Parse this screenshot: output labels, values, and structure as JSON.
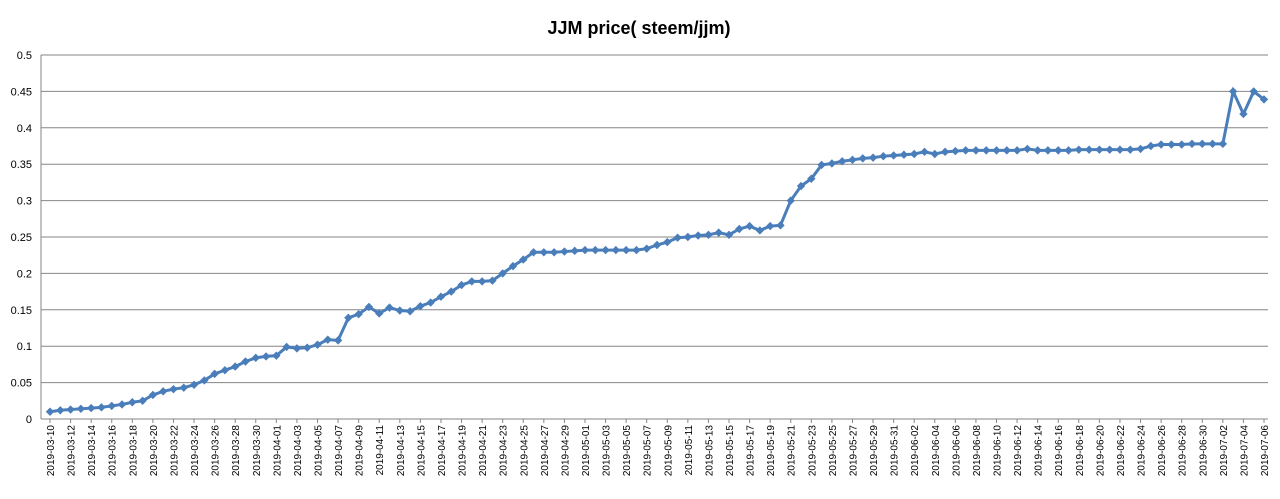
{
  "chart_data": {
    "type": "line",
    "title": "JJM price( steem/jjm)",
    "xlabel": "",
    "ylabel": "",
    "ylim": [
      0,
      0.5
    ],
    "yticks": [
      "0",
      "0.05",
      "0.1",
      "0.15",
      "0.2",
      "0.25",
      "0.3",
      "0.35",
      "0.4",
      "0.45",
      "0.5"
    ],
    "grid": true,
    "legend": "none",
    "color": "#4a7ebb",
    "x": [
      "2019-03-10",
      "2019-03-11",
      "2019-03-12",
      "2019-03-13",
      "2019-03-14",
      "2019-03-15",
      "2019-03-16",
      "2019-03-17",
      "2019-03-18",
      "2019-03-19",
      "2019-03-20",
      "2019-03-21",
      "2019-03-22",
      "2019-03-23",
      "2019-03-24",
      "2019-03-25",
      "2019-03-26",
      "2019-03-27",
      "2019-03-28",
      "2019-03-29",
      "2019-03-30",
      "2019-03-31",
      "2019-04-01",
      "2019-04-02",
      "2019-04-03",
      "2019-04-04",
      "2019-04-05",
      "2019-04-06",
      "2019-04-07",
      "2019-04-08",
      "2019-04-09",
      "2019-04-10",
      "2019-04-11",
      "2019-04-12",
      "2019-04-13",
      "2019-04-14",
      "2019-04-15",
      "2019-04-16",
      "2019-04-17",
      "2019-04-18",
      "2019-04-19",
      "2019-04-20",
      "2019-04-21",
      "2019-04-22",
      "2019-04-23",
      "2019-04-24",
      "2019-04-25",
      "2019-04-26",
      "2019-04-27",
      "2019-04-28",
      "2019-04-29",
      "2019-04-30",
      "2019-05-01",
      "2019-05-02",
      "2019-05-03",
      "2019-05-04",
      "2019-05-05",
      "2019-05-06",
      "2019-05-07",
      "2019-05-08",
      "2019-05-09",
      "2019-05-10",
      "2019-05-11",
      "2019-05-12",
      "2019-05-13",
      "2019-05-14",
      "2019-05-15",
      "2019-05-16",
      "2019-05-17",
      "2019-05-18",
      "2019-05-19",
      "2019-05-20",
      "2019-05-21",
      "2019-05-22",
      "2019-05-23",
      "2019-05-24",
      "2019-05-25",
      "2019-05-26",
      "2019-05-27",
      "2019-05-28",
      "2019-05-29",
      "2019-05-30",
      "2019-05-31",
      "2019-06-01",
      "2019-06-02",
      "2019-06-03",
      "2019-06-04",
      "2019-06-05",
      "2019-06-06",
      "2019-06-07",
      "2019-06-08",
      "2019-06-09",
      "2019-06-10",
      "2019-06-11",
      "2019-06-12",
      "2019-06-13",
      "2019-06-14",
      "2019-06-15",
      "2019-06-16",
      "2019-06-17",
      "2019-06-18",
      "2019-06-19",
      "2019-06-20",
      "2019-06-21",
      "2019-06-22",
      "2019-06-23",
      "2019-06-24",
      "2019-06-25",
      "2019-06-26",
      "2019-06-27",
      "2019-06-28",
      "2019-06-29",
      "2019-06-30",
      "2019-07-01",
      "2019-07-02",
      "2019-07-03",
      "2019-07-04",
      "2019-07-05",
      "2019-07-06"
    ],
    "xtick_labels": [
      "2019-03-10",
      "2019-03-12",
      "2019-03-14",
      "2019-03-16",
      "2019-03-18",
      "2019-03-20",
      "2019-03-22",
      "2019-03-24",
      "2019-03-26",
      "2019-03-28",
      "2019-03-30",
      "2019-04-01",
      "2019-04-03",
      "2019-04-05",
      "2019-04-07",
      "2019-04-09",
      "2019-04-11",
      "2019-04-13",
      "2019-04-15",
      "2019-04-17",
      "2019-04-19",
      "2019-04-21",
      "2019-04-23",
      "2019-04-25",
      "2019-04-27",
      "2019-04-29",
      "2019-05-01",
      "2019-05-03",
      "2019-05-05",
      "2019-05-07",
      "2019-05-09",
      "2019-05-11",
      "2019-05-13",
      "2019-05-15",
      "2019-05-17",
      "2019-05-19",
      "2019-05-21",
      "2019-05-23",
      "2019-05-25",
      "2019-05-27",
      "2019-05-29",
      "2019-05-31",
      "2019-06-02",
      "2019-06-04",
      "2019-06-06",
      "2019-06-08",
      "2019-06-10",
      "2019-06-12",
      "2019-06-14",
      "2019-06-16",
      "2019-06-18",
      "2019-06-20",
      "2019-06-22",
      "2019-06-24",
      "2019-06-26",
      "2019-06-28",
      "2019-06-30",
      "2019-07-02",
      "2019-07-04",
      "2019-07-06"
    ],
    "series": [
      {
        "values": [
          0.01,
          0.012,
          0.013,
          0.014,
          0.015,
          0.016,
          0.018,
          0.02,
          0.023,
          0.025,
          0.033,
          0.038,
          0.041,
          0.043,
          0.047,
          0.053,
          0.062,
          0.067,
          0.072,
          0.079,
          0.084,
          0.086,
          0.087,
          0.099,
          0.097,
          0.098,
          0.102,
          0.109,
          0.108,
          0.139,
          0.144,
          0.154,
          0.145,
          0.153,
          0.149,
          0.148,
          0.155,
          0.16,
          0.168,
          0.175,
          0.184,
          0.189,
          0.189,
          0.19,
          0.2,
          0.21,
          0.219,
          0.229,
          0.229,
          0.229,
          0.23,
          0.231,
          0.232,
          0.232,
          0.232,
          0.232,
          0.232,
          0.232,
          0.234,
          0.239,
          0.243,
          0.249,
          0.25,
          0.252,
          0.253,
          0.256,
          0.253,
          0.261,
          0.265,
          0.259,
          0.265,
          0.266,
          0.3,
          0.32,
          0.33,
          0.349,
          0.351,
          0.354,
          0.356,
          0.358,
          0.359,
          0.361,
          0.362,
          0.363,
          0.364,
          0.367,
          0.364,
          0.367,
          0.368,
          0.369,
          0.369,
          0.369,
          0.369,
          0.369,
          0.369,
          0.371,
          0.369,
          0.369,
          0.369,
          0.369,
          0.37,
          0.37,
          0.37,
          0.37,
          0.37,
          0.37,
          0.371,
          0.375,
          0.377,
          0.377,
          0.377,
          0.378,
          0.378,
          0.378,
          0.378,
          0.45,
          0.419,
          0.45,
          0.439
        ]
      }
    ]
  }
}
